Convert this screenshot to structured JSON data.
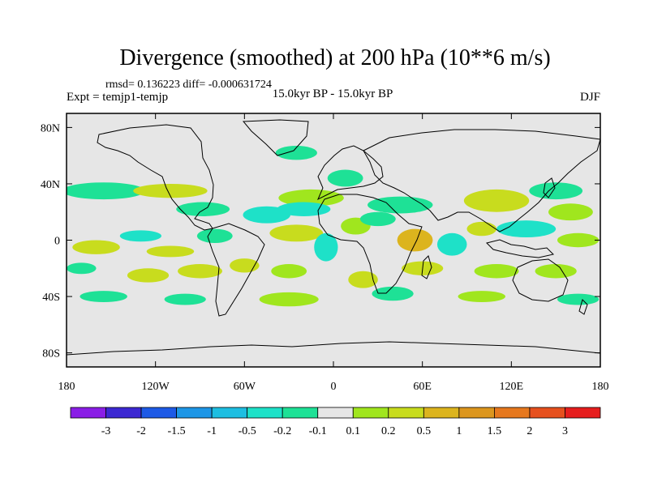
{
  "chart_data": {
    "type": "heatmap",
    "title": "Divergence (smoothed) at 200 hPa (10**6 m/s)",
    "stats_line": "rmsd= 0.136223 diff= -0.000631724",
    "experiment": "Expt = temjp1-temjp",
    "period": "15.0kyr BP - 15.0kyr BP",
    "season": "DJF",
    "lon_range": [
      -180,
      180
    ],
    "lat_range": [
      -90,
      90
    ],
    "lon_ticks": [
      {
        "value": -180,
        "label": "180"
      },
      {
        "value": -120,
        "label": "120W"
      },
      {
        "value": -60,
        "label": "60W"
      },
      {
        "value": 0,
        "label": "0"
      },
      {
        "value": 60,
        "label": "60E"
      },
      {
        "value": 120,
        "label": "120E"
      },
      {
        "value": 180,
        "label": "180"
      }
    ],
    "lat_ticks": [
      {
        "value": 80,
        "label": "80N"
      },
      {
        "value": 40,
        "label": "40N"
      },
      {
        "value": 0,
        "label": "0"
      },
      {
        "value": -40,
        "label": "40S"
      },
      {
        "value": -80,
        "label": "80S"
      }
    ],
    "colorbar": {
      "colors": [
        "#8a1ee6",
        "#3c28d2",
        "#1e5ae6",
        "#1e96e6",
        "#1ebee1",
        "#1ee1c8",
        "#1ee196",
        "#e6e6e6",
        "#a0e61e",
        "#c8dc1e",
        "#dcb41e",
        "#dc961e",
        "#e6781e",
        "#e6501e",
        "#e61e1e"
      ],
      "labels": [
        "-3",
        "-2",
        "-1.5",
        "-1",
        "-0.5",
        "-0.2",
        "-0.1",
        "0.1",
        "0.2",
        "0.5",
        "1",
        "1.5",
        "2",
        "3"
      ]
    },
    "features": [
      {
        "lon": -25,
        "lat": 62,
        "rx": 14,
        "ry": 5,
        "v": -0.15
      },
      {
        "lon": 8,
        "lat": 44,
        "rx": 12,
        "ry": 6,
        "v": -0.15
      },
      {
        "lon": -155,
        "lat": 35,
        "rx": 28,
        "ry": 6,
        "v": -0.15
      },
      {
        "lon": -110,
        "lat": 35,
        "rx": 25,
        "ry": 5,
        "v": 0.3
      },
      {
        "lon": -88,
        "lat": 22,
        "rx": 18,
        "ry": 5,
        "v": -0.15
      },
      {
        "lon": -15,
        "lat": 30,
        "rx": 22,
        "ry": 6,
        "v": 0.15
      },
      {
        "lon": 45,
        "lat": 25,
        "rx": 22,
        "ry": 6,
        "v": -0.15
      },
      {
        "lon": 110,
        "lat": 28,
        "rx": 22,
        "ry": 8,
        "v": 0.3
      },
      {
        "lon": 150,
        "lat": 35,
        "rx": 18,
        "ry": 6,
        "v": -0.15
      },
      {
        "lon": 160,
        "lat": 20,
        "rx": 15,
        "ry": 6,
        "v": 0.15
      },
      {
        "lon": -45,
        "lat": 18,
        "rx": 16,
        "ry": 6,
        "v": -0.35
      },
      {
        "lon": -20,
        "lat": 22,
        "rx": 18,
        "ry": 5,
        "v": -0.35
      },
      {
        "lon": -130,
        "lat": 3,
        "rx": 14,
        "ry": 4,
        "v": -0.35
      },
      {
        "lon": -160,
        "lat": -5,
        "rx": 16,
        "ry": 5,
        "v": 0.3
      },
      {
        "lon": -110,
        "lat": -8,
        "rx": 16,
        "ry": 4,
        "v": 0.3
      },
      {
        "lon": -80,
        "lat": 3,
        "rx": 12,
        "ry": 5,
        "v": -0.15
      },
      {
        "lon": -25,
        "lat": 5,
        "rx": 18,
        "ry": 6,
        "v": 0.3
      },
      {
        "lon": -5,
        "lat": -5,
        "rx": 8,
        "ry": 10,
        "v": -0.35
      },
      {
        "lon": 15,
        "lat": 10,
        "rx": 10,
        "ry": 6,
        "v": 0.15
      },
      {
        "lon": 30,
        "lat": 15,
        "rx": 12,
        "ry": 5,
        "v": -0.15
      },
      {
        "lon": 55,
        "lat": 0,
        "rx": 12,
        "ry": 8,
        "v": 0.8
      },
      {
        "lon": 80,
        "lat": -3,
        "rx": 10,
        "ry": 8,
        "v": -0.35
      },
      {
        "lon": 100,
        "lat": 8,
        "rx": 10,
        "ry": 5,
        "v": 0.3
      },
      {
        "lon": 130,
        "lat": 8,
        "rx": 20,
        "ry": 6,
        "v": -0.35
      },
      {
        "lon": 165,
        "lat": 0,
        "rx": 14,
        "ry": 5,
        "v": 0.15
      },
      {
        "lon": -170,
        "lat": -20,
        "rx": 10,
        "ry": 4,
        "v": -0.15
      },
      {
        "lon": -125,
        "lat": -25,
        "rx": 14,
        "ry": 5,
        "v": 0.3
      },
      {
        "lon": -90,
        "lat": -22,
        "rx": 15,
        "ry": 5,
        "v": 0.3
      },
      {
        "lon": -60,
        "lat": -18,
        "rx": 10,
        "ry": 5,
        "v": 0.3
      },
      {
        "lon": -30,
        "lat": -22,
        "rx": 12,
        "ry": 5,
        "v": 0.15
      },
      {
        "lon": 20,
        "lat": -28,
        "rx": 10,
        "ry": 6,
        "v": 0.3
      },
      {
        "lon": 60,
        "lat": -20,
        "rx": 14,
        "ry": 5,
        "v": 0.3
      },
      {
        "lon": 110,
        "lat": -22,
        "rx": 15,
        "ry": 5,
        "v": 0.15
      },
      {
        "lon": 150,
        "lat": -22,
        "rx": 14,
        "ry": 5,
        "v": 0.15
      },
      {
        "lon": -155,
        "lat": -40,
        "rx": 16,
        "ry": 4,
        "v": -0.15
      },
      {
        "lon": -100,
        "lat": -42,
        "rx": 14,
        "ry": 4,
        "v": -0.15
      },
      {
        "lon": -30,
        "lat": -42,
        "rx": 20,
        "ry": 5,
        "v": 0.15
      },
      {
        "lon": 40,
        "lat": -38,
        "rx": 14,
        "ry": 5,
        "v": -0.15
      },
      {
        "lon": 100,
        "lat": -40,
        "rx": 16,
        "ry": 4,
        "v": 0.15
      },
      {
        "lon": 165,
        "lat": -42,
        "rx": 14,
        "ry": 4,
        "v": -0.15
      }
    ]
  }
}
